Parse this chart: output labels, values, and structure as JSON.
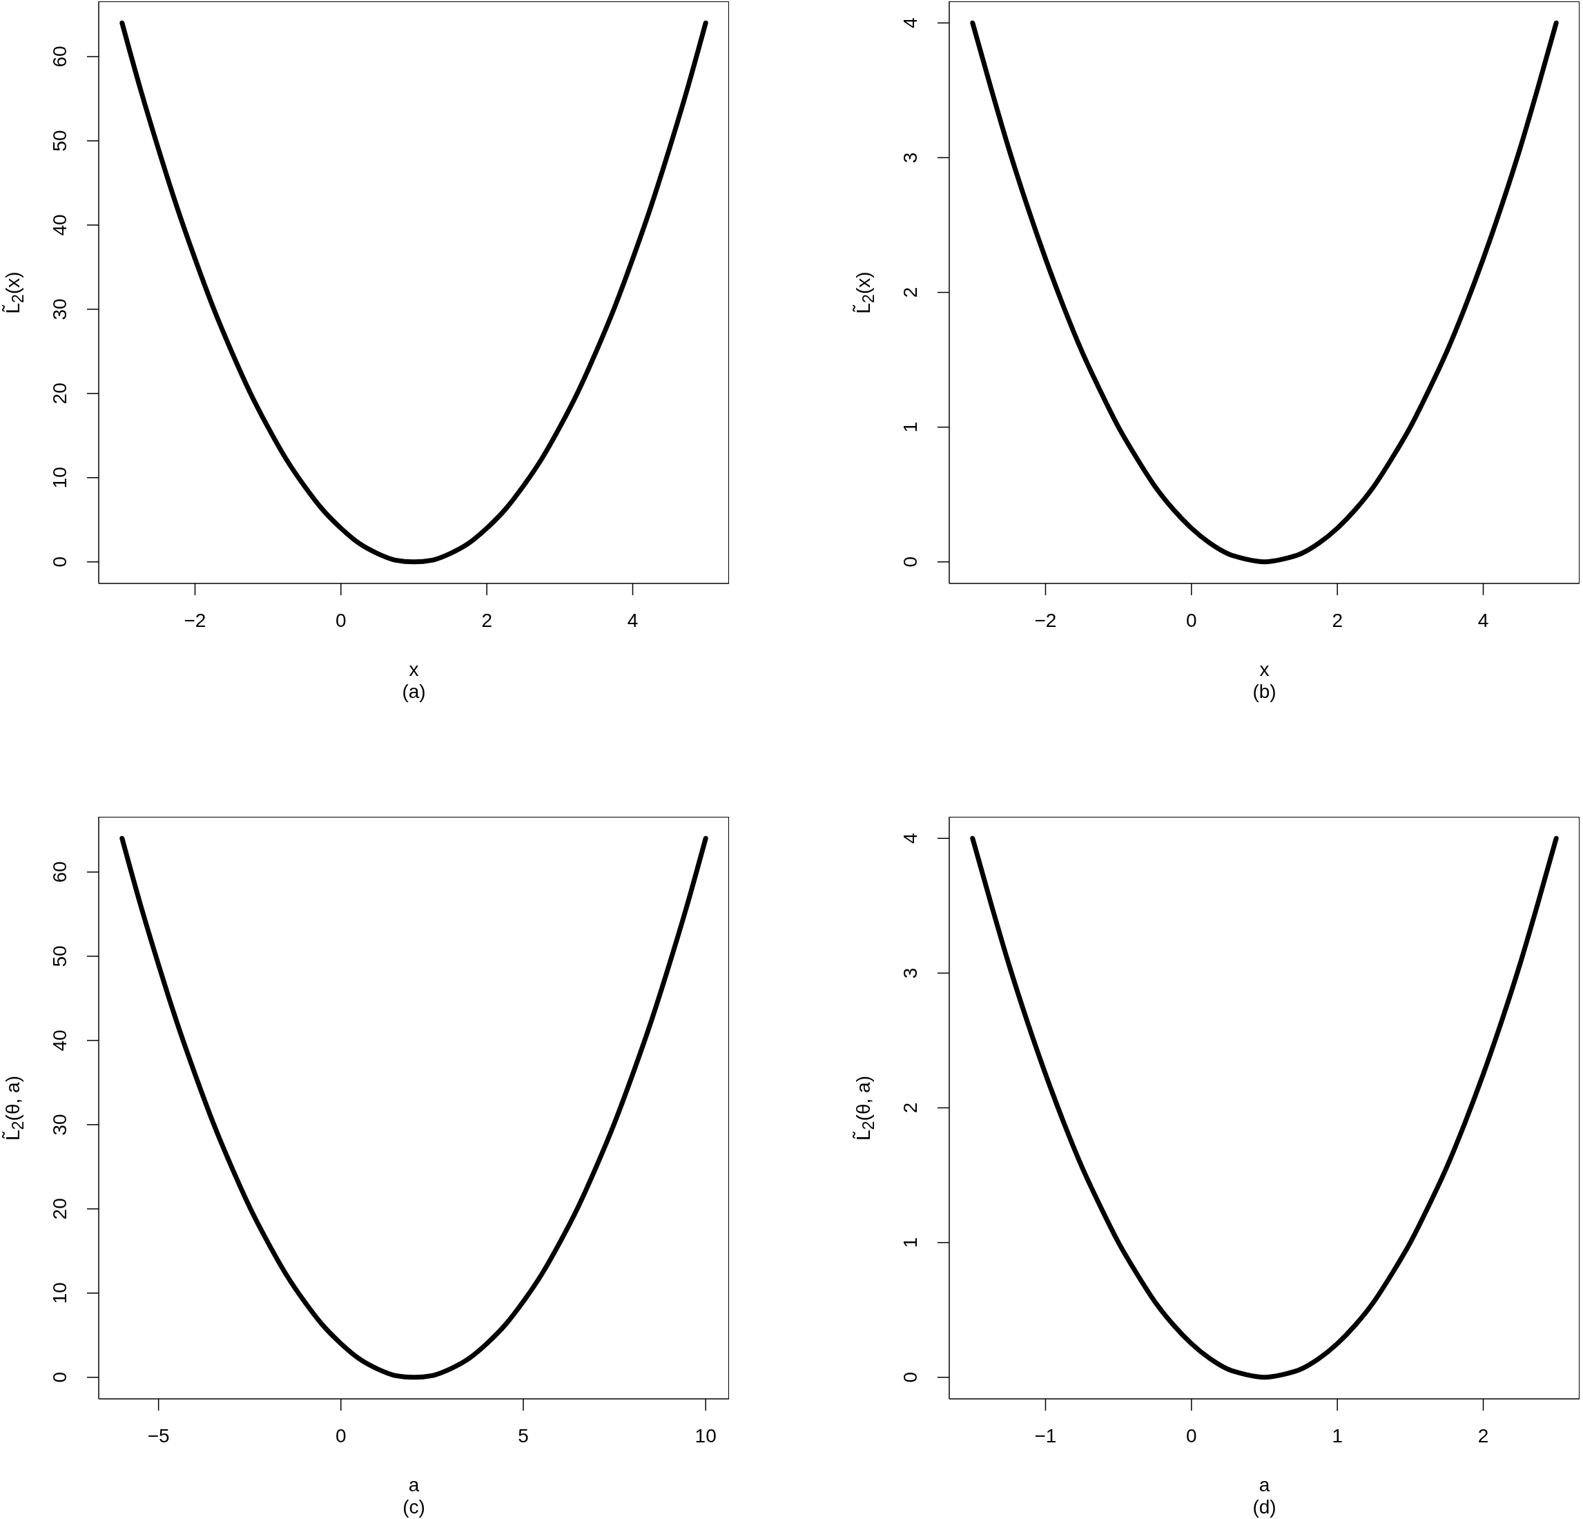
{
  "chart_data": [
    {
      "type": "line",
      "title": "(a)",
      "xlabel": "x",
      "ylabel": "L̃$_{2}$(x)",
      "x": [
        -3,
        -2.75,
        -2.5,
        -2.25,
        -2,
        -1.75,
        -1.5,
        -1.25,
        -1,
        -0.75,
        -0.5,
        -0.25,
        0,
        0.25,
        0.5,
        0.75,
        1,
        1.25,
        1.5,
        1.75,
        2,
        2.25,
        2.5,
        2.75,
        3,
        3.25,
        3.5,
        3.75,
        4,
        4.25,
        4.5,
        4.75,
        5
      ],
      "values": [
        64,
        56.2,
        49,
        42.2,
        36,
        30.2,
        25,
        20.2,
        16,
        12.2,
        9,
        6.2,
        4,
        2.2,
        1,
        0.2,
        0,
        0.2,
        1,
        2.2,
        4,
        6.2,
        9,
        12.2,
        16,
        20.2,
        25,
        30.2,
        36,
        42.2,
        49,
        56.2,
        64
      ],
      "color": "#000000",
      "xlim": [
        -3.32,
        5.32
      ],
      "ylim": [
        -2.56,
        66.56
      ],
      "xticks": [
        -2,
        0,
        2,
        4
      ],
      "yticks": [
        0,
        10,
        20,
        30,
        40,
        50,
        60
      ]
    },
    {
      "type": "line",
      "title": "(b)",
      "xlabel": "x",
      "ylabel": "L̃$_{2}$(x)",
      "x": [
        -3,
        -2.75,
        -2.5,
        -2.25,
        -2,
        -1.75,
        -1.5,
        -1.25,
        -1,
        -0.75,
        -0.5,
        -0.25,
        0,
        0.25,
        0.5,
        0.75,
        1,
        1.25,
        1.5,
        1.75,
        2,
        2.25,
        2.5,
        2.75,
        3,
        3.25,
        3.5,
        3.75,
        4,
        4.25,
        4.5,
        4.75,
        5
      ],
      "values": [
        4,
        3.52,
        3.06,
        2.64,
        2.25,
        1.89,
        1.56,
        1.27,
        1,
        0.77,
        0.56,
        0.39,
        0.25,
        0.14,
        0.06,
        0.02,
        0,
        0.02,
        0.06,
        0.14,
        0.25,
        0.39,
        0.56,
        0.77,
        1,
        1.27,
        1.56,
        1.89,
        2.25,
        2.64,
        3.06,
        3.52,
        4
      ],
      "color": "#000000",
      "xlim": [
        -3.32,
        5.32
      ],
      "ylim": [
        -0.16,
        4.16
      ],
      "xticks": [
        -2,
        0,
        2,
        4
      ],
      "yticks": [
        0,
        1,
        2,
        3,
        4
      ]
    },
    {
      "type": "line",
      "title": "(c)",
      "xlabel": "a",
      "ylabel": "L̃$_{2}$(θ, a)",
      "x": [
        -6,
        -5.5,
        -5,
        -4.5,
        -4,
        -3.5,
        -3,
        -2.5,
        -2,
        -1.5,
        -1,
        -0.5,
        0,
        0.5,
        1,
        1.5,
        2,
        2.5,
        3,
        3.5,
        4,
        4.5,
        5,
        5.5,
        6,
        6.5,
        7,
        7.5,
        8,
        8.5,
        9,
        9.5,
        10
      ],
      "values": [
        64,
        56.2,
        49,
        42.2,
        36,
        30.2,
        25,
        20.2,
        16,
        12.2,
        9,
        6.2,
        4,
        2.2,
        1,
        0.2,
        0,
        0.2,
        1,
        2.2,
        4,
        6.2,
        9,
        12.2,
        16,
        20.2,
        25,
        30.2,
        36,
        42.2,
        49,
        56.2,
        64
      ],
      "color": "#000000",
      "xlim": [
        -6.64,
        10.64
      ],
      "ylim": [
        -2.56,
        66.56
      ],
      "xticks": [
        -5,
        0,
        5,
        10
      ],
      "yticks": [
        0,
        10,
        20,
        30,
        40,
        50,
        60
      ]
    },
    {
      "type": "line",
      "title": "(d)",
      "xlabel": "a",
      "ylabel": "L̃$_{2}$(θ, a)",
      "x": [
        -1.5,
        -1.375,
        -1.25,
        -1.125,
        -1,
        -0.875,
        -0.75,
        -0.625,
        -0.5,
        -0.375,
        -0.25,
        -0.125,
        0,
        0.125,
        0.25,
        0.375,
        0.5,
        0.625,
        0.75,
        0.875,
        1,
        1.125,
        1.25,
        1.375,
        1.5,
        1.625,
        1.75,
        1.875,
        2,
        2.125,
        2.25,
        2.375,
        2.5
      ],
      "values": [
        4,
        3.52,
        3.06,
        2.64,
        2.25,
        1.89,
        1.56,
        1.27,
        1,
        0.77,
        0.56,
        0.39,
        0.25,
        0.14,
        0.06,
        0.02,
        0,
        0.02,
        0.06,
        0.14,
        0.25,
        0.39,
        0.56,
        0.77,
        1,
        1.27,
        1.56,
        1.89,
        2.25,
        2.64,
        3.06,
        3.52,
        4
      ],
      "color": "#000000",
      "xlim": [
        -1.66,
        2.66
      ],
      "ylim": [
        -0.16,
        4.16
      ],
      "xticks": [
        -1,
        0,
        1,
        2
      ],
      "yticks": [
        0,
        1,
        2,
        3,
        4
      ]
    }
  ]
}
